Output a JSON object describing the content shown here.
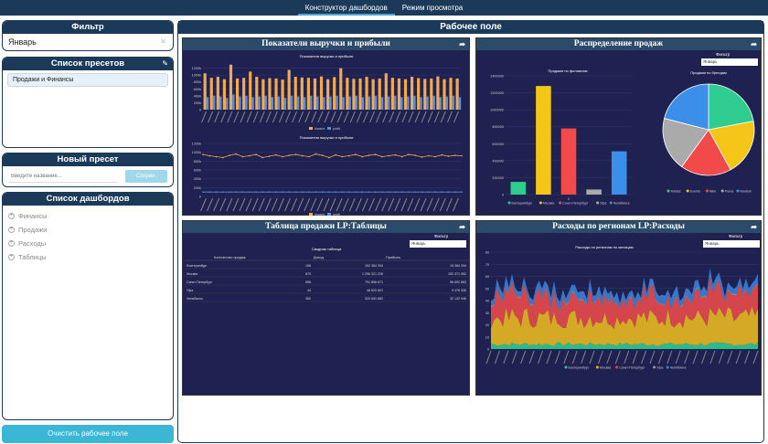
{
  "topbar": {
    "tabs": [
      {
        "label": "Конструктор дашбордов",
        "active": true
      },
      {
        "label": "Режим просмотра",
        "active": false
      }
    ]
  },
  "filter": {
    "title": "Фильтр",
    "value": "Январь"
  },
  "presets": {
    "title": "Список пресетов",
    "items": [
      "Продажи и Финансы"
    ]
  },
  "new_preset": {
    "title": "Новый пресет",
    "placeholder": "Введите название...",
    "save_label": "Сохран."
  },
  "dashboards": {
    "title": "Список дашбордов",
    "items": [
      "Финансы",
      "Продажи",
      "Расходы",
      "Таблицы"
    ]
  },
  "clear_label": "Очистить рабочее поле",
  "workspace": {
    "title": "Рабочее поле",
    "filter_label": "Фильтр",
    "filter_value": "Январь",
    "cards": [
      {
        "title": "Показатели выручки и прибыли"
      },
      {
        "title": "Распределение продаж"
      },
      {
        "title": "Таблица продажи LP:Таблицы"
      },
      {
        "title": "Расходы по регионам LP:Расходы"
      }
    ]
  },
  "colors": {
    "navy": "#1b3a5a",
    "card_bg": "#1f2250",
    "accent": "#3bb6d6"
  },
  "chart_data": [
    {
      "type": "bar",
      "title": "Показатели выручки и прибыли",
      "categories": [
        "1",
        "2",
        "3",
        "4",
        "5",
        "6",
        "7",
        "8",
        "9",
        "10",
        "11",
        "12",
        "13",
        "14",
        "15",
        "16",
        "17",
        "18",
        "19",
        "20",
        "21",
        "22",
        "23",
        "24",
        "25",
        "26",
        "27",
        "28",
        "29",
        "30",
        "31",
        "32",
        "33",
        "34",
        "35",
        "36",
        "37",
        "38",
        "39",
        "40"
      ],
      "series": [
        {
          "name": "income",
          "color": "#f2a950",
          "values": [
            1050,
            920,
            950,
            880,
            1300,
            900,
            920,
            1100,
            950,
            880,
            910,
            900,
            870,
            1150,
            950,
            930,
            920,
            900,
            960,
            880,
            940,
            1200,
            920,
            890,
            900,
            950,
            880,
            900,
            1050,
            920,
            900,
            880,
            950,
            910,
            890,
            900,
            960,
            880,
            920,
            900
          ]
        },
        {
          "name": "profit",
          "color": "#5b8fd8",
          "values": [
            90,
            100,
            95,
            85,
            110,
            95,
            100,
            90,
            95,
            100,
            90,
            95,
            85,
            100,
            95,
            90,
            100,
            95,
            90,
            95,
            100,
            90,
            95,
            100,
            90,
            95,
            100,
            90,
            95,
            100,
            90,
            95,
            100,
            90,
            95,
            100,
            90,
            95,
            100,
            90
          ]
        }
      ],
      "ylim": [
        0,
        1400
      ],
      "yticks": [
        "0",
        "200k",
        "400k",
        "600k",
        "800k",
        "1000k",
        "1200k"
      ]
    },
    {
      "type": "line",
      "title": "Показатели выручки и прибыли",
      "series": [
        {
          "name": "income",
          "color": "#f2a950",
          "values": [
            950,
            920,
            900,
            880,
            930,
            960,
            900,
            920,
            950,
            880,
            910,
            940,
            900,
            930,
            950,
            920,
            900,
            960,
            930,
            880,
            940,
            900,
            920,
            950,
            900,
            930,
            950,
            900,
            920,
            940,
            900,
            950,
            930,
            890,
            920,
            900,
            940,
            910,
            930,
            920
          ]
        },
        {
          "name": "profit",
          "color": "#5b8fd8",
          "values": [
            100,
            100,
            100,
            100,
            100,
            100,
            100,
            100,
            100,
            100,
            100,
            100,
            100,
            100,
            100,
            100,
            100,
            100,
            100,
            100,
            100,
            100,
            100,
            100,
            100,
            100,
            100,
            100,
            100,
            100,
            100,
            100,
            100,
            100,
            100,
            100,
            100,
            100,
            100,
            100
          ]
        }
      ],
      "ylim": [
        0,
        1200
      ],
      "yticks": [
        "0",
        "200k",
        "400k",
        "600k",
        "800k",
        "1000k",
        "1200k"
      ]
    },
    {
      "type": "bar",
      "title": "Продажи по филиалам",
      "categories": [
        "Екатеринбург",
        "Москва",
        "Санкт-Петербург",
        "Уфа",
        "Челябинск"
      ],
      "values": [
        150000,
        1280000,
        780000,
        60000,
        510000
      ],
      "colors": [
        "#2ecc8f",
        "#f5c518",
        "#f24a4a",
        "#aaaaaa",
        "#3b8fe8"
      ],
      "ylim": [
        0,
        1400000
      ],
      "yticks": [
        "0",
        "200000",
        "400000",
        "600000",
        "800000",
        "1000000",
        "1200000",
        "1400000"
      ]
    },
    {
      "type": "pie",
      "title": "Продажи по брендам",
      "categories": [
        "Adidas",
        "Evento",
        "Nike",
        "Puma",
        "Reebok"
      ],
      "values": [
        22,
        20,
        18,
        19,
        21
      ],
      "colors": [
        "#2ecc8f",
        "#f5c518",
        "#f24a4a",
        "#aaaaaa",
        "#3b8fe8"
      ]
    },
    {
      "type": "table",
      "title": "Сводная таблица",
      "columns": [
        "",
        "Количество продаж",
        "Доход",
        "Прибыль"
      ],
      "rows": [
        [
          "Екатеринбург",
          "156",
          "152 384 394",
          "15 384 394"
        ],
        [
          "Москва",
          "879",
          "1 296 321 226",
          "152 371 952"
        ],
        [
          "Санкт-Петербург",
          "558",
          "791 856 671",
          "96 692 863"
        ],
        [
          "Уфа",
          "44",
          "48 620 601",
          "9 476 335"
        ],
        [
          "Челябинск",
          "382",
          "320 651 882",
          "32 132 946"
        ]
      ]
    },
    {
      "type": "area",
      "title": "Расходы по регионам по месяцам",
      "series": [
        {
          "name": "Екатеринбург",
          "color": "#2ecc8f"
        },
        {
          "name": "Москва",
          "color": "#e8b820"
        },
        {
          "name": "Санкт-Петербург",
          "color": "#e84a4a"
        },
        {
          "name": "Уфа",
          "color": "#999999"
        },
        {
          "name": "Челябинск",
          "color": "#3b7fd8"
        }
      ],
      "ylim": [
        0,
        80
      ],
      "yticks": [
        "0",
        "10",
        "20",
        "30",
        "40",
        "50",
        "60",
        "70",
        "80"
      ]
    }
  ]
}
